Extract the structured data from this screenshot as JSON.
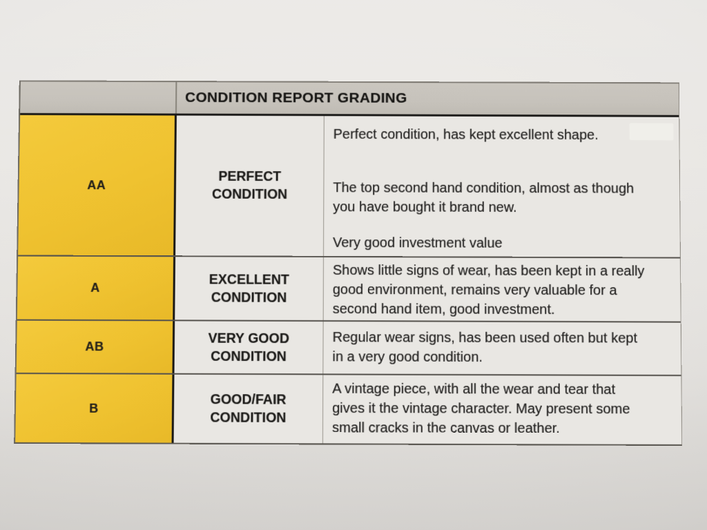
{
  "document": {
    "header_title": "CONDITION REPORT GRADING",
    "rows": [
      {
        "grade": "AA",
        "label_lines": [
          "PERFECT",
          "CONDITION"
        ],
        "paragraphs": [
          "Perfect condition, has kept excellent shape.",
          "The top second hand condition, almost as though you have bought it brand new.",
          "Very good investment value"
        ]
      },
      {
        "grade": "A",
        "label_lines": [
          "EXCELLENT",
          "CONDITION"
        ],
        "paragraphs": [
          "Shows little signs of wear, has been kept in a really good environment, remains very valuable for a second hand item, good investment."
        ]
      },
      {
        "grade": "AB",
        "label_lines": [
          "VERY GOOD",
          "CONDITION"
        ],
        "paragraphs": [
          "Regular wear signs, has been used often but kept in a very good condition."
        ]
      },
      {
        "grade": "B",
        "label_lines": [
          "GOOD/FAIR",
          "CONDITION"
        ],
        "paragraphs": [
          "A vintage piece, with all the wear and tear that gives it the vintage character. May present some small cracks in the canvas or leather."
        ]
      }
    ],
    "colors": {
      "grade_column_yellow": "#EFC231",
      "header_gray": "#C6C2BB",
      "cell_background": "#E9E7E3",
      "border_black": "#1B1A18",
      "text": "#1F1E1C"
    }
  }
}
